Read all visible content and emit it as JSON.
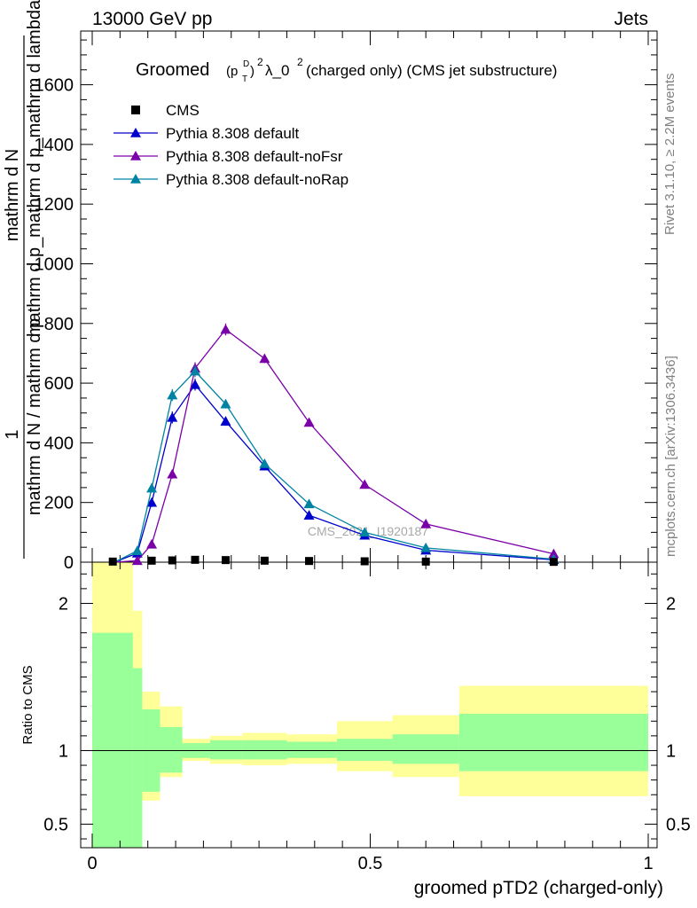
{
  "header": {
    "left": "13000 GeV pp",
    "right": "Jets"
  },
  "side": {
    "rivet": "Rivet 3.1.10, ≥ 2.2M events",
    "mcplots": "mcplots.cern.ch [arXiv:1306.3436]"
  },
  "watermark": "CMS_2021_I1920187",
  "chart_data": {
    "type": "line",
    "title": {
      "prefix": "Groomed",
      "main": "λ_0",
      "suffix": "  (charged only) (CMS jet substructure)"
    },
    "ylabel": {
      "one": "1",
      "dN": "mathrm d N / mathrm d p",
      "dN2": "mathrm d N",
      "dlambda": "mathrm d p_mathrm d p_mathrm d lambda"
    },
    "xlabel": "groomed pTD2 (charged-only)",
    "ratio_ylabel": "Ratio to CMS",
    "xlim": [
      0,
      1
    ],
    "ylim": [
      0,
      1780
    ],
    "ratio_ylim": [
      0.34,
      2.28
    ],
    "x_ticks": [
      {
        "v": 0,
        "label": "0"
      },
      {
        "v": 0.5,
        "label": "0.5"
      },
      {
        "v": 1,
        "label": "1"
      }
    ],
    "y_ticks": [
      {
        "v": 0,
        "label": "0"
      },
      {
        "v": 200,
        "label": "200"
      },
      {
        "v": 400,
        "label": "400"
      },
      {
        "v": 600,
        "label": "600"
      },
      {
        "v": 800,
        "label": "800"
      },
      {
        "v": 1000,
        "label": "1000"
      },
      {
        "v": 1200,
        "label": "1200"
      },
      {
        "v": 1400,
        "label": "1400"
      },
      {
        "v": 1600,
        "label": "1600"
      }
    ],
    "ratio_ticks": [
      {
        "v": 0.5,
        "label": "0.5"
      },
      {
        "v": 1,
        "label": "1"
      },
      {
        "v": 2,
        "label": "2"
      }
    ],
    "legend": [
      {
        "label": "CMS",
        "color": "#000000",
        "marker": "square"
      },
      {
        "label": "Pythia 8.308 default",
        "color": "#0000cc",
        "marker": "triangle"
      },
      {
        "label": "Pythia 8.308 default-noFsr",
        "color": "#7a00a8",
        "marker": "triangle"
      },
      {
        "label": "Pythia 8.308 default-noRap",
        "color": "#0083a3",
        "marker": "triangle"
      }
    ],
    "data": {
      "x": [
        0.037,
        0.107,
        0.144,
        0.185,
        0.24,
        0.31,
        0.39,
        0.49,
        0.6,
        0.83
      ],
      "y": [
        2,
        5,
        6,
        8,
        7,
        5,
        4,
        3,
        2,
        1
      ]
    },
    "series": [
      {
        "name": "Pythia 8.308 default",
        "color": "#0000cc",
        "x": [
          0.04,
          0.081,
          0.107,
          0.144,
          0.185,
          0.24,
          0.31,
          0.39,
          0.49,
          0.6,
          0.83
        ],
        "y": [
          0,
          30,
          200,
          485,
          595,
          472,
          322,
          157,
          90,
          40,
          8
        ],
        "err": [
          0,
          4,
          15,
          20,
          20,
          15,
          10,
          8,
          6,
          4,
          2
        ]
      },
      {
        "name": "Pythia 8.308 default-noFsr",
        "color": "#7a00a8",
        "x": [
          0.04,
          0.081,
          0.107,
          0.144,
          0.185,
          0.24,
          0.31,
          0.39,
          0.49,
          0.6,
          0.83
        ],
        "y": [
          0,
          5,
          60,
          295,
          650,
          780,
          682,
          468,
          260,
          128,
          28
        ],
        "err": [
          0,
          2,
          8,
          15,
          20,
          20,
          15,
          12,
          8,
          5,
          3
        ]
      },
      {
        "name": "Pythia 8.308 default-noRap",
        "color": "#0083a3",
        "x": [
          0.04,
          0.081,
          0.107,
          0.144,
          0.185,
          0.24,
          0.31,
          0.39,
          0.49,
          0.6,
          0.83
        ],
        "y": [
          0,
          38,
          248,
          560,
          640,
          530,
          330,
          195,
          100,
          48,
          10
        ],
        "err": [
          0,
          4,
          15,
          20,
          20,
          15,
          10,
          8,
          6,
          4,
          2
        ]
      }
    ],
    "ratio_bands": {
      "inner_color": "#99ff99",
      "outer_color": "#ffff99",
      "bins": [
        {
          "x0": 0.0,
          "x1": 0.073,
          "inner": [
            0.34,
            1.8
          ],
          "outer": [
            0.34,
            2.28
          ]
        },
        {
          "x0": 0.073,
          "x1": 0.09,
          "inner": [
            0.34,
            1.56
          ],
          "outer": [
            0.34,
            1.95
          ]
        },
        {
          "x0": 0.09,
          "x1": 0.122,
          "inner": [
            0.72,
            1.28
          ],
          "outer": [
            0.66,
            1.4
          ]
        },
        {
          "x0": 0.122,
          "x1": 0.162,
          "inner": [
            0.85,
            1.16
          ],
          "outer": [
            0.82,
            1.3
          ]
        },
        {
          "x0": 0.162,
          "x1": 0.212,
          "inner": [
            0.95,
            1.05
          ],
          "outer": [
            0.93,
            1.08
          ]
        },
        {
          "x0": 0.212,
          "x1": 0.27,
          "inner": [
            0.94,
            1.07
          ],
          "outer": [
            0.91,
            1.1
          ]
        },
        {
          "x0": 0.27,
          "x1": 0.35,
          "inner": [
            0.94,
            1.07
          ],
          "outer": [
            0.9,
            1.12
          ]
        },
        {
          "x0": 0.35,
          "x1": 0.44,
          "inner": [
            0.95,
            1.06
          ],
          "outer": [
            0.91,
            1.11
          ]
        },
        {
          "x0": 0.44,
          "x1": 0.54,
          "inner": [
            0.93,
            1.08
          ],
          "outer": [
            0.86,
            1.2
          ]
        },
        {
          "x0": 0.54,
          "x1": 0.66,
          "inner": [
            0.91,
            1.11
          ],
          "outer": [
            0.82,
            1.24
          ]
        },
        {
          "x0": 0.66,
          "x1": 1.0,
          "inner": [
            0.86,
            1.25
          ],
          "outer": [
            0.69,
            1.44
          ]
        }
      ]
    }
  }
}
